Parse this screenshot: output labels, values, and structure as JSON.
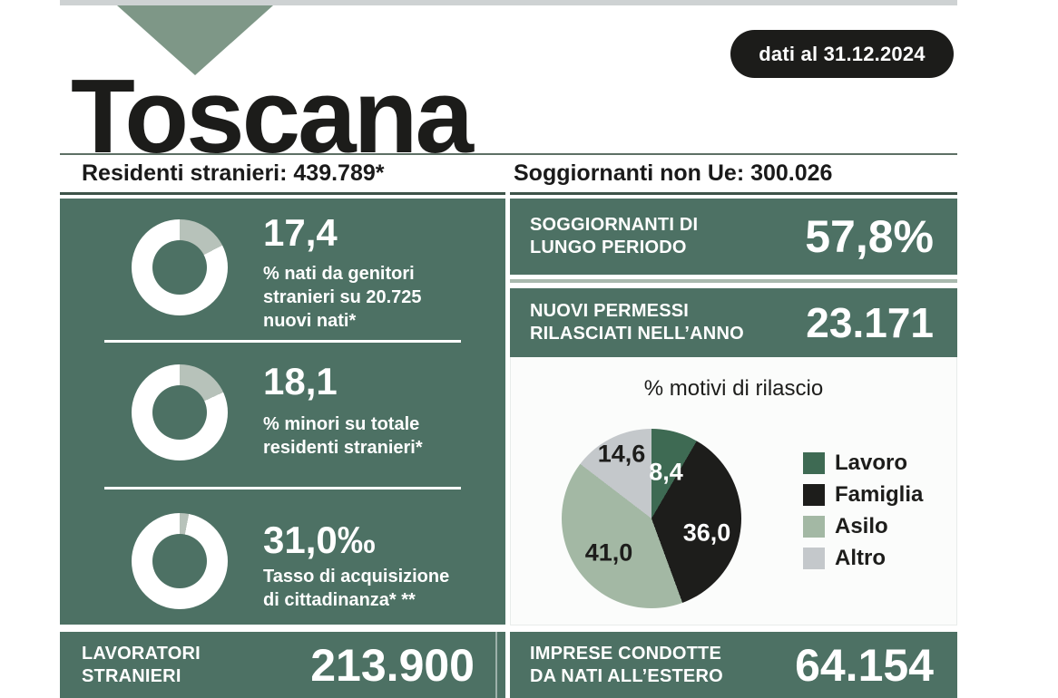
{
  "badge": {
    "label": "dati al 31.12.2024"
  },
  "title": "Toscana",
  "section_headers": {
    "left": "Residenti stranieri: 439.789*",
    "right": "Soggiornanti non Ue: 300.026"
  },
  "key_indicators": {
    "stats": [
      {
        "value": "17,4",
        "pct": 17.4,
        "desc": "% nati da genitori\nstranieri su 20.725\nnuovi nati*"
      },
      {
        "value": "18,1",
        "pct": 18.1,
        "desc": "% minori su totale\nresidenti stranieri*"
      },
      {
        "value": "31,0‰",
        "pct": 3.1,
        "desc": "Tasso di acquisizione\ndi cittadinanza* **"
      }
    ]
  },
  "permit_panels": [
    {
      "label": "SOGGIORNANTI DI\nLUNGO PERIODO",
      "value": "57,8%"
    },
    {
      "label": "NUOVI PERMESSI\nRILASCIATI NELL’ANNO",
      "value": "23.171"
    }
  ],
  "chart_data": {
    "type": "pie",
    "title": "% motivi di rilascio",
    "start_angle_deg": 0,
    "direction": "clockwise",
    "legend_position": "right",
    "slices": [
      {
        "label": "Lavoro",
        "value": 8.4,
        "value_label": "8,4",
        "color": "#3e6a53"
      },
      {
        "label": "Famiglia",
        "value": 36.0,
        "value_label": "36,0",
        "color": "#1d1d1b"
      },
      {
        "label": "Asilo",
        "value": 41.0,
        "value_label": "41,0",
        "color": "#a3b8a4"
      },
      {
        "label": "Altro",
        "value": 14.6,
        "value_label": "14,6",
        "color": "#c4c8cb"
      }
    ]
  },
  "bottom_bars": [
    {
      "label": "LAVORATORI\nSTRANIERI",
      "value": "213.900"
    },
    {
      "label": "IMPRESE CONDOTTE\nDA NATI ALL’ESTERO",
      "value": "64.154"
    }
  ],
  "colors": {
    "panel_green": "#4d7164",
    "donut_segment": "#b7c2ba",
    "donut_track": "#ffffff",
    "triangle_green": "#7e9787",
    "topbar_gray": "#ced2d3",
    "badge_black": "#1c1c1a"
  }
}
